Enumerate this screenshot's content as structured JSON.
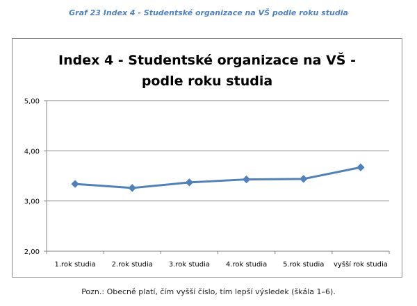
{
  "caption": "Graf 23 Index 4 - Studentské organizace na VŠ podle roku studia",
  "note": "Pozn.: Obecně platí, čím vyšší číslo, tím lepší výsledek (škála 1–6).",
  "colors": {
    "series": "#4f81bd",
    "caption": "#4f81bd",
    "grid": "#868686"
  },
  "chart_data": {
    "type": "line",
    "title": [
      "Index  4 - Studentské organizace na VŠ -",
      "podle roku studia"
    ],
    "categories": [
      "1.rok studia",
      "2.rok studia",
      "3.rok studia",
      "4.rok studia",
      "5.rok studia",
      "vyšší rok studia"
    ],
    "series": [
      {
        "values": [
          3.34,
          3.26,
          3.37,
          3.43,
          3.44,
          3.67
        ]
      }
    ],
    "ylim": [
      2,
      5
    ],
    "yticks": [
      "2,00",
      "3,00",
      "4,00",
      "5,00"
    ],
    "ytick_values": [
      2,
      3,
      4,
      5
    ],
    "grid": true,
    "legend": "none",
    "marker": "diamond"
  }
}
